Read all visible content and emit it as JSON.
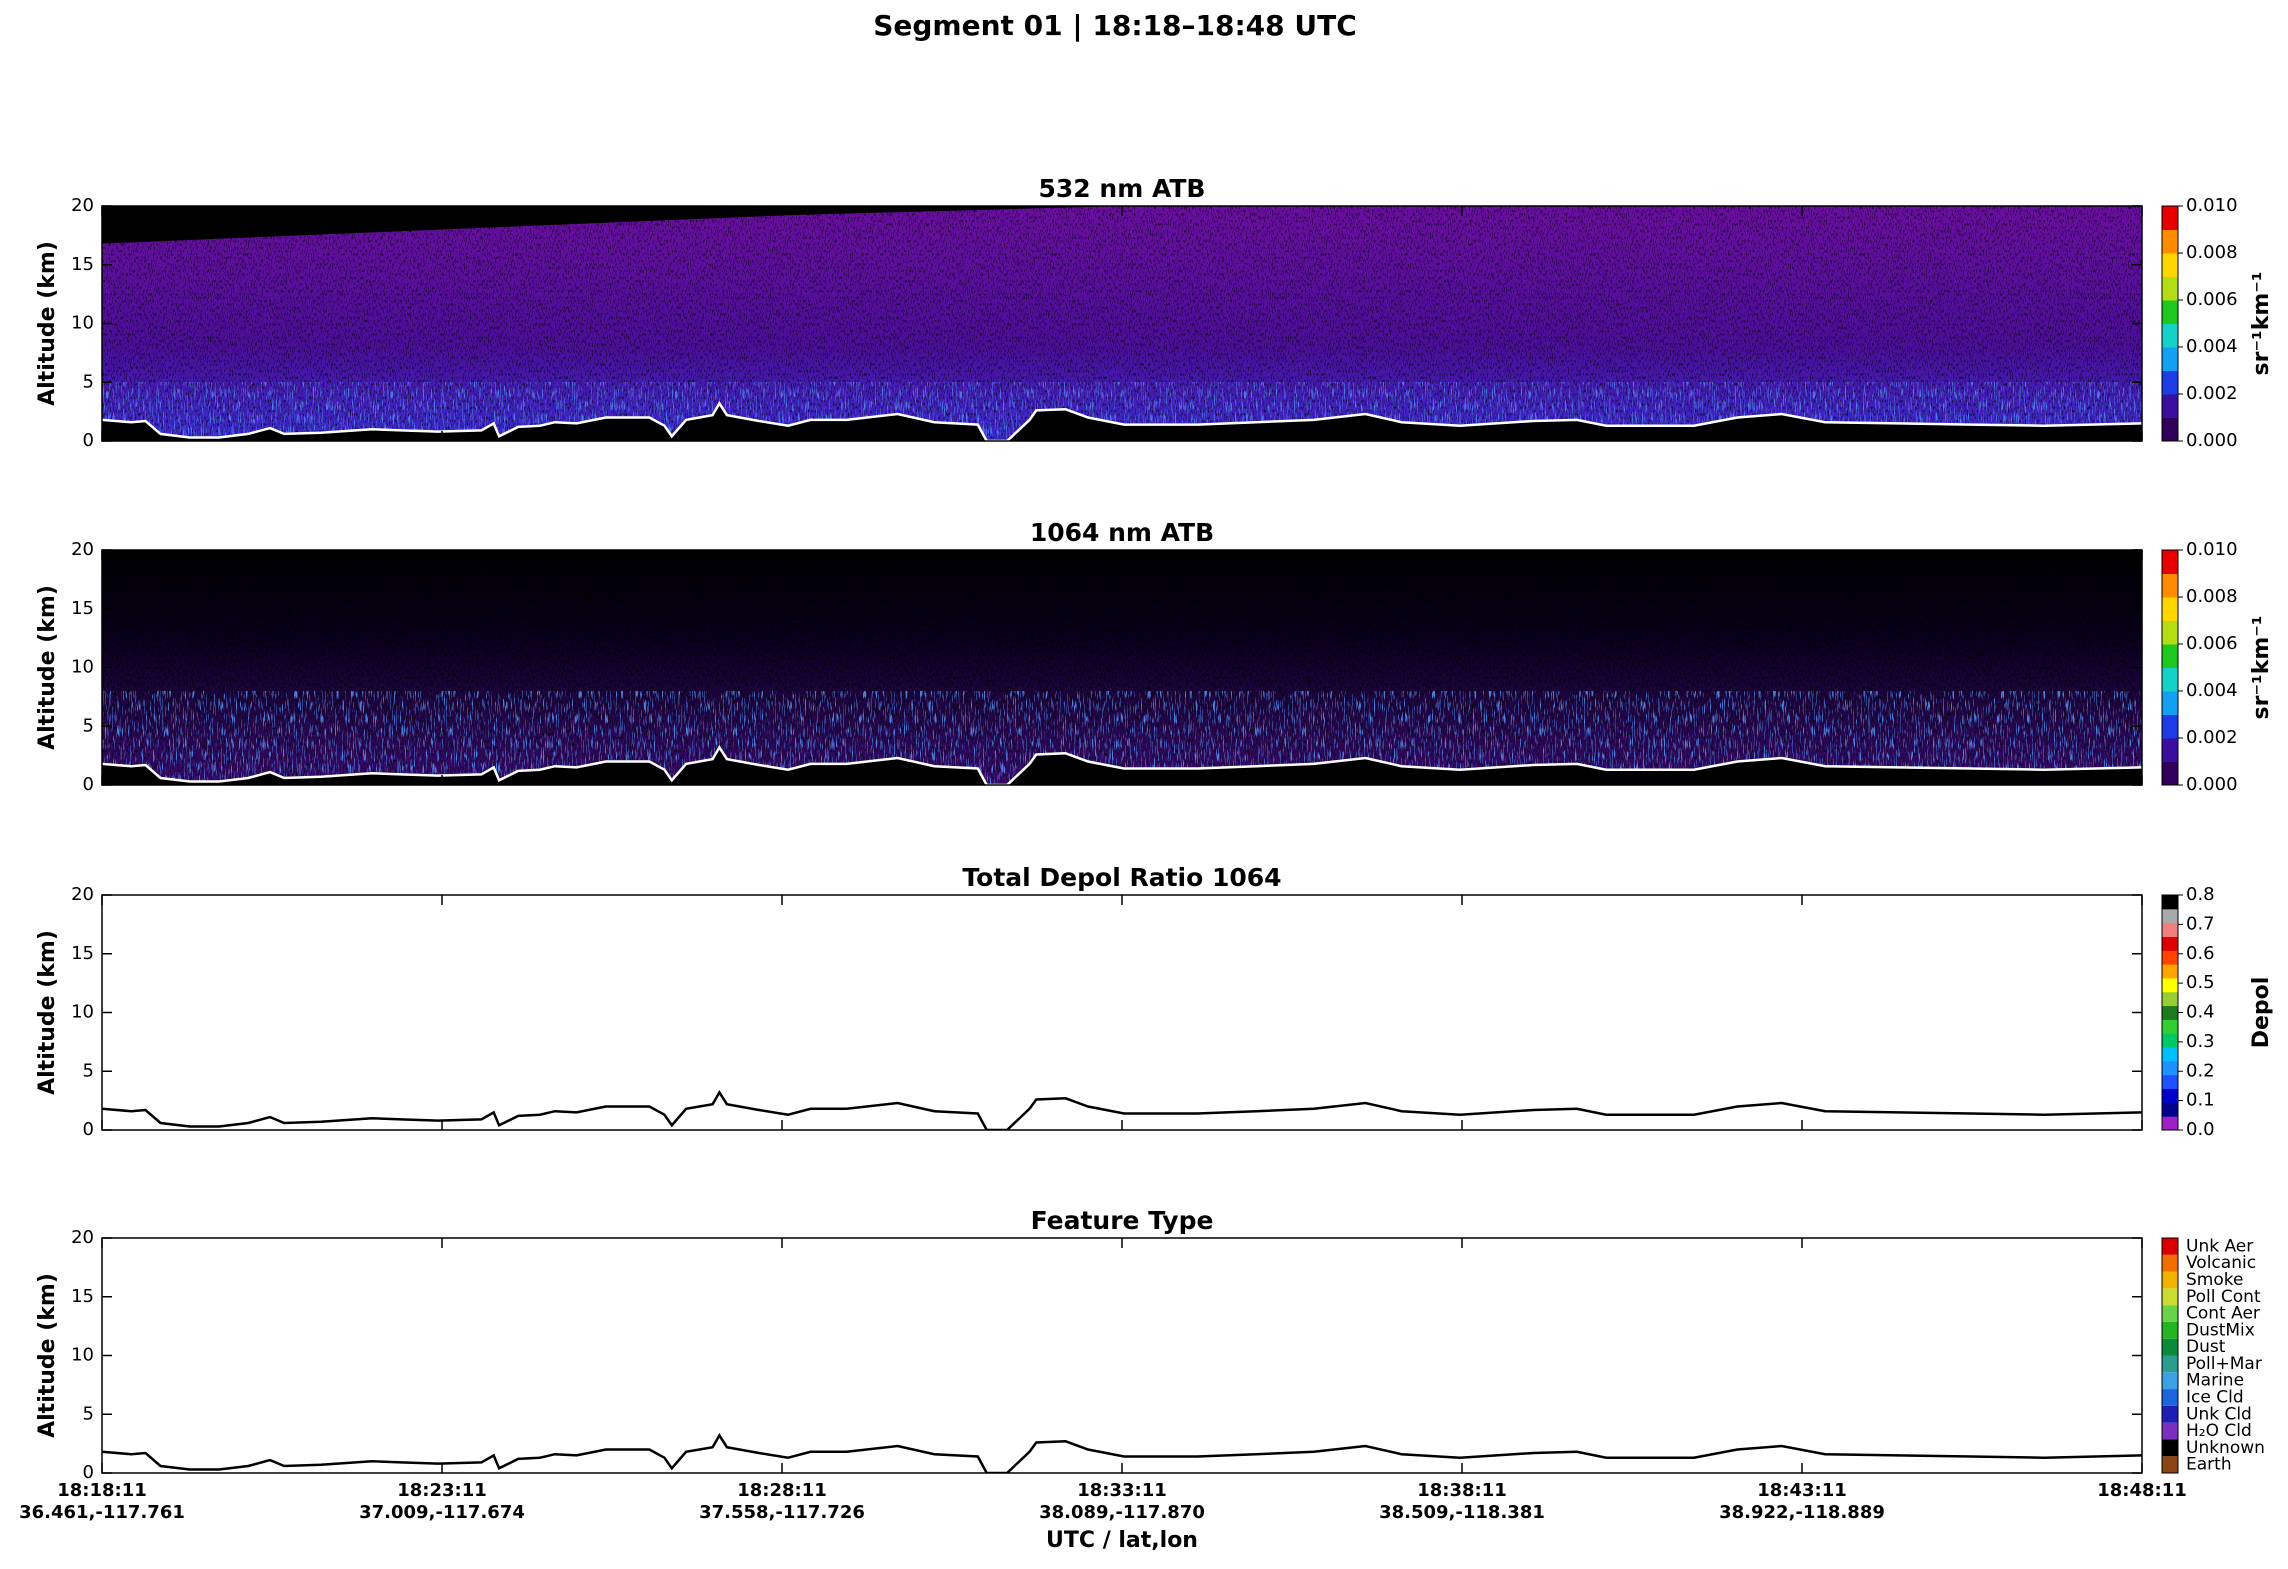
{
  "figure": {
    "title": "Segment 01  |  18:18–18:48 UTC"
  },
  "xaxis": {
    "label": "UTC / lat,lon",
    "xlim": [
      0,
      30
    ],
    "xticks": [
      {
        "value": 0,
        "label": "18:18:11"
      },
      {
        "value": 5,
        "label": "18:23:11"
      },
      {
        "value": 10,
        "label": "18:28:11"
      },
      {
        "value": 15,
        "label": "18:33:11"
      },
      {
        "value": 20,
        "label": "18:38:11"
      },
      {
        "value": 25,
        "label": "18:43:11"
      },
      {
        "value": 30,
        "label": "18:48:11"
      }
    ],
    "xtick_locations": [
      "36.461,-117.761",
      "37.009,-117.674",
      "37.558,-117.726",
      "38.089,-117.870",
      "38.509,-118.381",
      "38.922,-118.889",
      ""
    ]
  },
  "surface": {
    "x": [
      0,
      0.43,
      0.64,
      0.86,
      1.29,
      1.72,
      2.15,
      2.47,
      2.68,
      3.22,
      3.97,
      4.4,
      4.94,
      5.58,
      5.76,
      5.84,
      6.12,
      6.44,
      6.66,
      6.98,
      7.41,
      8.05,
      8.27,
      8.38,
      8.59,
      8.98,
      9.08,
      9.19,
      9.66,
      10.09,
      10.42,
      10.95,
      11.7,
      12.24,
      12.88,
      13.01,
      13.31,
      13.64,
      13.74,
      14.17,
      14.5,
      15.03,
      16.11,
      16.97,
      17.82,
      18.58,
      19.11,
      19.97,
      21.05,
      21.69,
      22.12,
      23.41,
      24.05,
      24.7,
      25.34,
      26.41,
      27.49,
      28.56,
      30
    ],
    "values": [
      1.8,
      1.6,
      1.7,
      0.6,
      0.3,
      0.3,
      0.6,
      1.1,
      0.6,
      0.7,
      1.0,
      0.9,
      0.8,
      0.9,
      1.5,
      0.4,
      1.2,
      1.3,
      1.6,
      1.5,
      2.0,
      2.0,
      1.3,
      0.4,
      1.8,
      2.2,
      3.2,
      2.2,
      1.7,
      1.3,
      1.8,
      1.8,
      2.3,
      1.6,
      1.4,
      0.0,
      0.0,
      1.8,
      2.6,
      2.7,
      2.0,
      1.4,
      1.4,
      1.6,
      1.8,
      2.3,
      1.6,
      1.3,
      1.7,
      1.8,
      1.3,
      1.3,
      2.0,
      2.3,
      1.6,
      1.5,
      1.4,
      1.3,
      1.5
    ]
  },
  "chart_data": [
    {
      "type": "heatmap",
      "title": "532 nm ATB",
      "ylabel": "Altitude (km)",
      "ylim": [
        0,
        20
      ],
      "yticks": [
        0,
        5,
        10,
        15,
        20
      ],
      "surface_color": "#ffffff",
      "colorbar": {
        "label": "sr⁻¹km⁻¹",
        "lim": [
          0,
          0.01
        ],
        "ticks": [
          {
            "value": 0,
            "label": "0.000"
          },
          {
            "value": 0.002,
            "label": "0.002"
          },
          {
            "value": 0.004,
            "label": "0.004"
          },
          {
            "value": 0.006,
            "label": "0.006"
          },
          {
            "value": 0.008,
            "label": "0.008"
          },
          {
            "value": 0.01,
            "label": "0.010"
          }
        ],
        "colors": [
          "#30005a",
          "#3a0fa0",
          "#1e3ce6",
          "#14a0f0",
          "#14d2c8",
          "#1ec81e",
          "#b4dc14",
          "#ffd700",
          "#ff8c00",
          "#e60000"
        ]
      }
    },
    {
      "type": "heatmap",
      "title": "1064 nm ATB",
      "ylabel": "Altitude (km)",
      "ylim": [
        0,
        20
      ],
      "yticks": [
        0,
        5,
        10,
        15,
        20
      ],
      "surface_color": "#ffffff",
      "colorbar": {
        "label": "sr⁻¹km⁻¹",
        "lim": [
          0,
          0.01
        ],
        "ticks": [
          {
            "value": 0,
            "label": "0.000"
          },
          {
            "value": 0.002,
            "label": "0.002"
          },
          {
            "value": 0.004,
            "label": "0.004"
          },
          {
            "value": 0.006,
            "label": "0.006"
          },
          {
            "value": 0.008,
            "label": "0.008"
          },
          {
            "value": 0.01,
            "label": "0.010"
          }
        ],
        "colors": [
          "#30005a",
          "#3a0fa0",
          "#1e3ce6",
          "#14a0f0",
          "#14d2c8",
          "#1ec81e",
          "#b4dc14",
          "#ffd700",
          "#ff8c00",
          "#e60000"
        ]
      }
    },
    {
      "type": "profile",
      "title": "Total Depol Ratio 1064",
      "ylabel": "Altitude (km)",
      "ylim": [
        0,
        20
      ],
      "yticks": [
        0,
        5,
        10,
        15,
        20
      ],
      "surface_color": "#000000",
      "colorbar": {
        "label": "Depol",
        "lim": [
          0,
          0.8
        ],
        "ticks": [
          {
            "value": 0,
            "label": "0.0"
          },
          0.1,
          0.2,
          0.3,
          0.4,
          0.5,
          0.6,
          0.7,
          0.8
        ],
        "colors": [
          "#a020c8",
          "#00008b",
          "#0000cd",
          "#1e50ff",
          "#1e90ff",
          "#00bfff",
          "#00c864",
          "#32cd32",
          "#1e7a1e",
          "#9acd32",
          "#ffff00",
          "#ffa500",
          "#ff4500",
          "#dc0000",
          "#f08080",
          "#a9a9a9",
          "#000000"
        ]
      }
    },
    {
      "type": "profile",
      "title": "Feature Type",
      "ylabel": "Altitude (km)",
      "ylim": [
        0,
        20
      ],
      "yticks": [
        0,
        5,
        10,
        15,
        20
      ],
      "surface_color": "#000000",
      "colorbar": {
        "classes": [
          "Earth",
          "Unknown",
          "H₂O Cld",
          "Unk Cld",
          "Ice Cld",
          "Marine",
          "Poll+Mar",
          "Dust",
          "DustMix",
          "Cont Aer",
          "Poll Cont",
          "Smoke",
          "Volcanic",
          "Unk Aer"
        ],
        "colors": [
          "#8b4513",
          "#000000",
          "#7b2fbe",
          "#1e1eb4",
          "#1e64dc",
          "#3ca0e6",
          "#2a9d8f",
          "#0a8a3a",
          "#22b422",
          "#6ad24a",
          "#c8dc32",
          "#f0b400",
          "#f06e00",
          "#dc0000"
        ]
      }
    }
  ]
}
